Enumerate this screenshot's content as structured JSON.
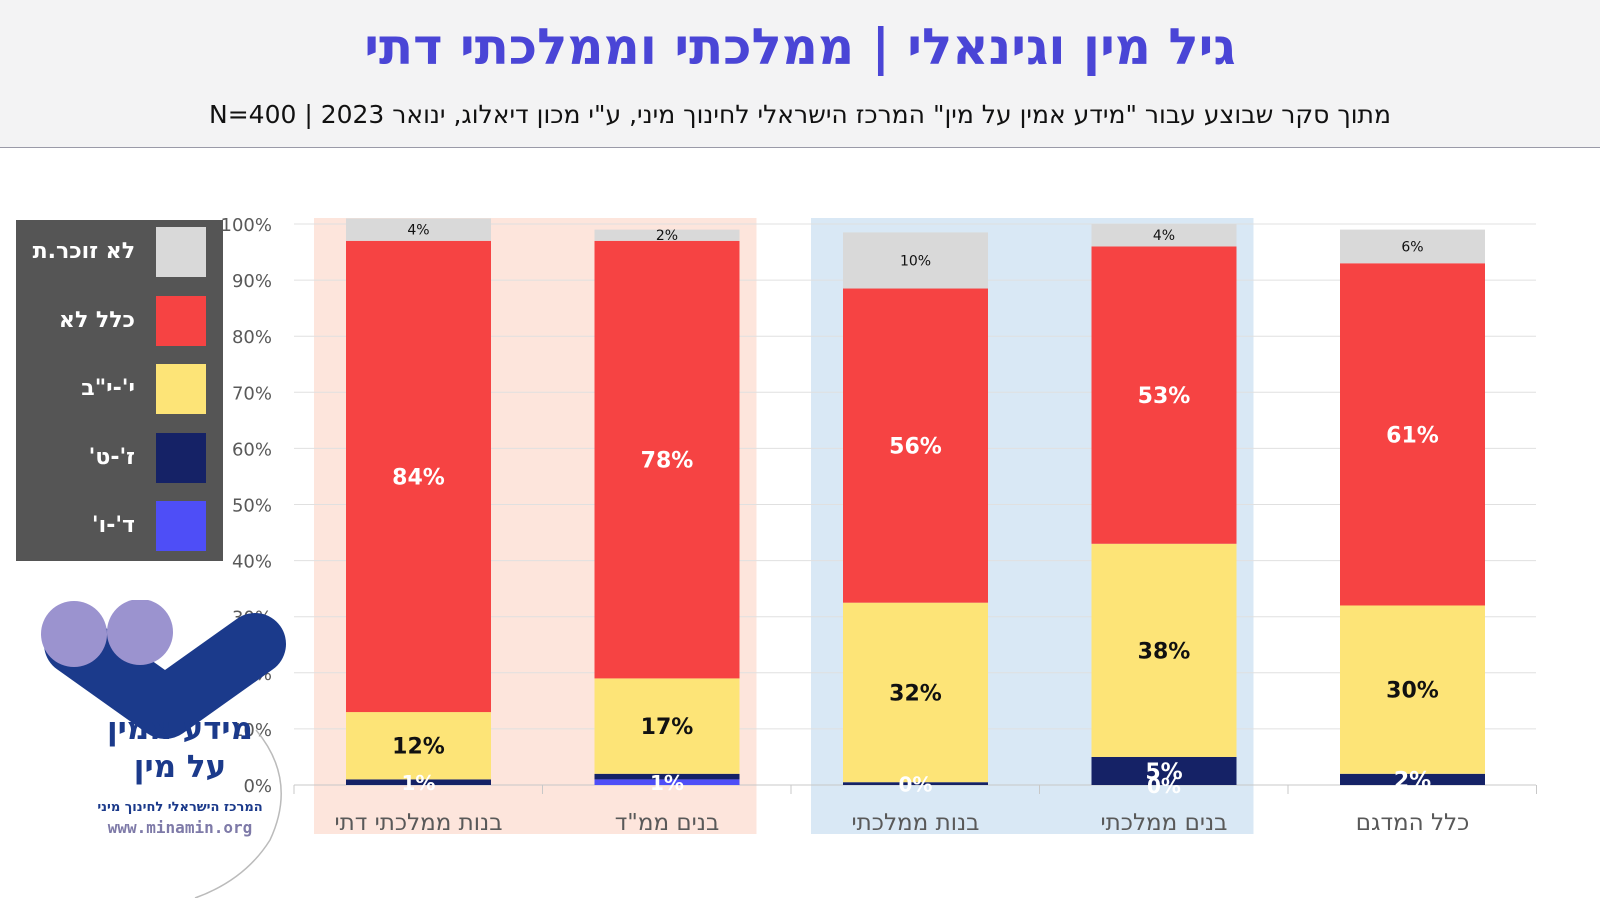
{
  "header": {
    "title": "גיל מין וגינאלי | ממלכתי וממלכתי דתי",
    "subtitle": "מתוך סקר שבוצע עבור \"מידע אמין על מין\" המרכז הישראלי לחינוך מיני, ע\"י מכון דיאלוג, ינואר 2023 | 400=N"
  },
  "legend": [
    {
      "label": "לא זוכר.ת",
      "color": "#d9d9d9"
    },
    {
      "label": "כלל לא",
      "color": "#f64343"
    },
    {
      "label": "י'-י\"ב",
      "color": "#fde477"
    },
    {
      "label": "ז'-ט'",
      "color": "#152266"
    },
    {
      "label": "ד'-ו'",
      "color": "#4e4ef7"
    }
  ],
  "logo": {
    "line1": "מידע אמין",
    "line2": "על מין",
    "line3": "המרכז הישראלי לחינוך מיני",
    "line4": "www.minamin.org"
  },
  "chart_data": {
    "type": "bar",
    "stacked": true,
    "ylim": [
      0,
      100
    ],
    "y_ticks": [
      "0%",
      "10%",
      "20%",
      "30%",
      "40%",
      "50%",
      "60%",
      "70%",
      "80%",
      "90%",
      "100%"
    ],
    "categories": [
      "בנות ממלכתי דתי",
      "בנים ממ\"ד",
      "בנות ממלכתי",
      "בנים ממלכתי",
      "כלל המדגם"
    ],
    "series": [
      {
        "name": "ד'-ו'",
        "color": "#4e4ef7",
        "values": [
          0,
          1,
          0,
          0,
          0
        ],
        "labels": [
          "",
          "1%",
          "",
          "0%",
          ""
        ]
      },
      {
        "name": "ז'-ט'",
        "color": "#152266",
        "values": [
          1,
          1,
          0.5,
          5,
          2
        ],
        "labels": [
          "1%",
          "",
          "0%",
          "5%",
          "2%"
        ]
      },
      {
        "name": "י'-י\"ב",
        "color": "#fde477",
        "values": [
          12,
          17,
          32,
          38,
          30
        ],
        "labels": [
          "12%",
          "17%",
          "32%",
          "38%",
          "30%"
        ]
      },
      {
        "name": "כלל לא",
        "color": "#f64343",
        "values": [
          84,
          78,
          56,
          53,
          61
        ],
        "labels": [
          "84%",
          "78%",
          "56%",
          "53%",
          "61%"
        ]
      },
      {
        "name": "לא זוכר.ת",
        "color": "#d9d9d9",
        "values": [
          4,
          2,
          10,
          4,
          6
        ],
        "labels": [
          "4%",
          "2%",
          "10%",
          "4%",
          "6%"
        ]
      }
    ],
    "highlight_groups": [
      {
        "name": "ממלכתי דתי",
        "categories": [
          0,
          1
        ],
        "color": "#fde5dc"
      },
      {
        "name": "ממלכתי",
        "categories": [
          2,
          3
        ],
        "color": "#d9e8f5"
      }
    ]
  }
}
